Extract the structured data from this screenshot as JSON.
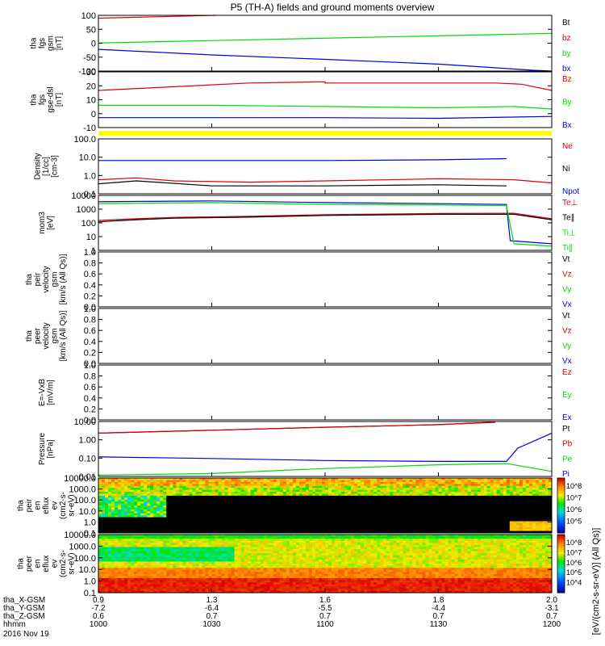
{
  "title": "P5 (TH-A) fields and ground moments overview",
  "colors": {
    "red": "#e00000",
    "green": "#00dd00",
    "blue": "#0000dd",
    "black": "#000000",
    "yellow": "#ffff00"
  },
  "time_axis": {
    "ticks": [
      "1000",
      "1030",
      "1100",
      "1130",
      "1200"
    ],
    "rows": [
      {
        "label": "tha_X-GSM",
        "values": [
          "0.9",
          "1.3",
          "1.6",
          "1.8",
          "2.0"
        ]
      },
      {
        "label": "tha_Y-GSM",
        "values": [
          "-7.2",
          "-6.4",
          "-5.5",
          "-4.4",
          "-3.1"
        ]
      },
      {
        "label": "tha_Z-GSM",
        "values": [
          "0.6",
          "0.7",
          "0.7",
          "0.7",
          "0.7"
        ]
      },
      {
        "label": "hhmm",
        "values": [
          "1000",
          "1030",
          "1100",
          "1130",
          "1200"
        ]
      }
    ],
    "date": "2016 Nov 19"
  },
  "chart_data": [
    {
      "type": "line",
      "ylabel": [
        "tha",
        "fgs",
        "gsm",
        "[nT]"
      ],
      "ylim": [
        -100,
        100
      ],
      "yticks": [
        "100",
        "50",
        "0",
        "-50",
        "-100"
      ],
      "legend": [
        "Bt",
        "bz",
        "by",
        "bx"
      ],
      "series": [
        {
          "name": "Bt",
          "color": "#e00000",
          "points": [
            [
              1000,
              90
            ],
            [
              1031,
              108
            ]
          ]
        },
        {
          "name": "by",
          "color": "#00dd00",
          "points": [
            [
              1000,
              1
            ],
            [
              1200,
              35
            ]
          ]
        },
        {
          "name": "bx",
          "color": "#0000dd",
          "points": [
            [
              1000,
              -22
            ],
            [
              1030,
              -42
            ],
            [
              1100,
              -58
            ],
            [
              1130,
              -75
            ],
            [
              1155,
              -97
            ],
            [
              1200,
              -100
            ]
          ]
        }
      ]
    },
    {
      "type": "line",
      "ylabel": [
        "tha",
        "fgs",
        "gse-dsl",
        "[nT]"
      ],
      "ylim": [
        -15,
        30
      ],
      "yticks": [
        "30",
        "20",
        "10",
        "0",
        "-10"
      ],
      "legend": [
        "Bz",
        "By",
        "Bx"
      ],
      "series": [
        {
          "name": "Bz",
          "color": "#e00000",
          "points": [
            [
              1000,
              15
            ],
            [
              1020,
              18
            ],
            [
              1040,
              21
            ],
            [
              1060,
              22
            ],
            [
              1100,
              21
            ],
            [
              1130,
              21
            ],
            [
              1145,
              21
            ],
            [
              1152,
              20
            ],
            [
              1200,
              15
            ]
          ]
        },
        {
          "name": "By",
          "color": "#00dd00",
          "points": [
            [
              1000,
              3
            ],
            [
              1030,
              3
            ],
            [
              1100,
              2
            ],
            [
              1130,
              1
            ],
            [
              1150,
              2
            ],
            [
              1200,
              0
            ]
          ]
        },
        {
          "name": "Bx",
          "color": "#0000dd",
          "points": [
            [
              1000,
              -7
            ],
            [
              1030,
              -7
            ],
            [
              1100,
              -7
            ],
            [
              1130,
              -7.5
            ],
            [
              1200,
              -6
            ]
          ]
        }
      ]
    },
    {
      "type": "line",
      "ylabel": [
        "Density",
        "[1/cc]",
        "[cm-3]"
      ],
      "ylog": true,
      "ylim": [
        0.1,
        200
      ],
      "yticks": [
        "100.0",
        "10.0",
        "1.0",
        "0.1"
      ],
      "legend": [
        "Ne",
        "Ni",
        "Npot"
      ],
      "series": [
        {
          "name": "Ne",
          "color": "#e00000",
          "points": [
            [
              1000,
              0.7
            ],
            [
              1010,
              0.9
            ],
            [
              1020,
              0.6
            ],
            [
              1040,
              0.5
            ],
            [
              1100,
              0.6
            ],
            [
              1130,
              0.8
            ],
            [
              1150,
              0.7
            ],
            [
              1200,
              0.45
            ]
          ]
        },
        {
          "name": "Ni",
          "color": "#000000",
          "points": [
            [
              1000,
              0.4
            ],
            [
              1010,
              0.6
            ],
            [
              1030,
              0.3
            ],
            [
              1100,
              0.3
            ],
            [
              1130,
              0.35
            ],
            [
              1148,
              0.3
            ]
          ]
        },
        {
          "name": "Npot",
          "color": "#0000dd",
          "points": [
            [
              1000,
              10
            ],
            [
              1030,
              10
            ],
            [
              1100,
              10
            ],
            [
              1130,
              11
            ],
            [
              1148,
              13
            ]
          ]
        }
      ]
    },
    {
      "type": "line",
      "ylabel": [
        "mom3",
        "[eV]"
      ],
      "ylog": true,
      "ylim": [
        1,
        10000
      ],
      "yticks": [
        "10000",
        "1000",
        "100",
        "10",
        "1"
      ],
      "legend": [
        "Te⊥",
        "Te∥",
        "Ti⊥",
        "Ti∥"
      ],
      "series": [
        {
          "name": "Te⊥",
          "color": "#e00000",
          "points": [
            [
              1000,
              150
            ],
            [
              1010,
              200
            ],
            [
              1020,
              250
            ],
            [
              1040,
              300
            ],
            [
              1100,
              400
            ],
            [
              1130,
              480
            ],
            [
              1150,
              500
            ],
            [
              1200,
              200
            ]
          ]
        },
        {
          "name": "Te∥",
          "color": "#000000",
          "points": [
            [
              1000,
              120
            ],
            [
              1010,
              170
            ],
            [
              1020,
              220
            ],
            [
              1040,
              260
            ],
            [
              1100,
              350
            ],
            [
              1130,
              420
            ],
            [
              1150,
              420
            ],
            [
              1200,
              170
            ]
          ]
        },
        {
          "name": "Ti⊥",
          "color": "#0000dd",
          "points": [
            [
              1000,
              3500
            ],
            [
              1030,
              4000
            ],
            [
              1100,
              3000
            ],
            [
              1130,
              2500
            ],
            [
              1148,
              2200
            ],
            [
              1149,
              5
            ],
            [
              1200,
              3
            ]
          ]
        },
        {
          "name": "Ti∥",
          "color": "#00dd00",
          "points": [
            [
              1000,
              2500
            ],
            [
              1030,
              3000
            ],
            [
              1100,
              2200
            ],
            [
              1130,
              2000
            ],
            [
              1148,
              1800
            ],
            [
              1150,
              3
            ],
            [
              1200,
              2
            ]
          ]
        }
      ]
    },
    {
      "type": "line",
      "ylabel": [
        "tha",
        "peir",
        "velocity",
        "gsm",
        "[km/s (All Qs)]"
      ],
      "ylim": [
        0,
        1
      ],
      "yticks": [
        "1.0",
        "0.8",
        "0.6",
        "0.4",
        "0.2",
        "0.0"
      ],
      "legend": [
        "Vt",
        "Vz",
        "Vy",
        "Vx"
      ],
      "series": []
    },
    {
      "type": "line",
      "ylabel": [
        "tha",
        "peer",
        "velocity",
        "gsm",
        "[km/s (All Qs)]"
      ],
      "ylim": [
        0,
        1
      ],
      "yticks": [
        "1.0",
        "0.8",
        "0.6",
        "0.4",
        "0.2",
        "0.0"
      ],
      "legend": [
        "Vt",
        "Vz",
        "Vy",
        "Vx"
      ],
      "series": []
    },
    {
      "type": "line",
      "ylabel": [
        "E=-VxB",
        "[mV/m]"
      ],
      "ylim": [
        0,
        1
      ],
      "yticks": [
        "1.0",
        "0.8",
        "0.6",
        "0.4",
        "0.2",
        "0.0"
      ],
      "legend": [
        "Ez",
        "Ey",
        "Ex"
      ],
      "series": []
    },
    {
      "type": "line",
      "ylabel": [
        "Pressure",
        "[nPa]"
      ],
      "ylog": true,
      "ylim": [
        0.01,
        20
      ],
      "yticks": [
        "10.00",
        "1.00",
        "0.10",
        "0.01"
      ],
      "legend": [
        "Pt",
        "Pb",
        "Pe",
        "Pi"
      ],
      "series": [
        {
          "name": "Pt",
          "color": "#000000",
          "points": [
            [
              1000,
              4
            ],
            [
              1030,
              6
            ],
            [
              1100,
              9
            ],
            [
              1130,
              13
            ],
            [
              1145,
              18
            ]
          ]
        },
        {
          "name": "Pb",
          "color": "#e00000",
          "points": [
            [
              1000,
              4
            ],
            [
              1030,
              6
            ],
            [
              1100,
              9
            ],
            [
              1130,
              13
            ],
            [
              1145,
              18
            ]
          ]
        },
        {
          "name": "Pi",
          "color": "#0000dd",
          "points": [
            [
              1000,
              0.15
            ],
            [
              1030,
              0.12
            ],
            [
              1100,
              0.09
            ],
            [
              1130,
              0.08
            ],
            [
              1148,
              0.08
            ],
            [
              1151,
              0.5
            ],
            [
              1200,
              4
            ]
          ]
        },
        {
          "name": "Pe",
          "color": "#00dd00",
          "points": [
            [
              1000,
              0.012
            ],
            [
              1030,
              0.015
            ],
            [
              1100,
              0.03
            ],
            [
              1130,
              0.05
            ],
            [
              1148,
              0.06
            ],
            [
              1200,
              0.02
            ]
          ]
        }
      ]
    },
    {
      "type": "heatmap",
      "ylabel": [
        "tha",
        "peir",
        "en",
        "eflux",
        "ev",
        "(cm2-s-",
        "sr-eV)"
      ],
      "ylog": true,
      "ylim": [
        0.1,
        30000
      ],
      "yticks": [
        "10000.0",
        "1000.0",
        "100.0",
        "10.0",
        "1.0",
        "0.1"
      ],
      "colorbar_ticks": [
        "10^8",
        "10^7",
        "10^6",
        "10^5"
      ]
    },
    {
      "type": "heatmap",
      "ylabel": [
        "tha",
        "peer",
        "en",
        "eflux",
        "ev",
        "(cm2-s-",
        "sr-eV)"
      ],
      "ylog": true,
      "ylim": [
        0.1,
        30000
      ],
      "yticks": [
        "10000.0",
        "1000.0",
        "100.0",
        "10.0",
        "1.0",
        "0.1"
      ],
      "colorbar_ticks": [
        "10^8",
        "10^7",
        "10^6",
        "10^5",
        "10^4"
      ]
    }
  ],
  "colorbar_label": "[eV/(cm2-s-sr-eV)] (All Qs)]"
}
